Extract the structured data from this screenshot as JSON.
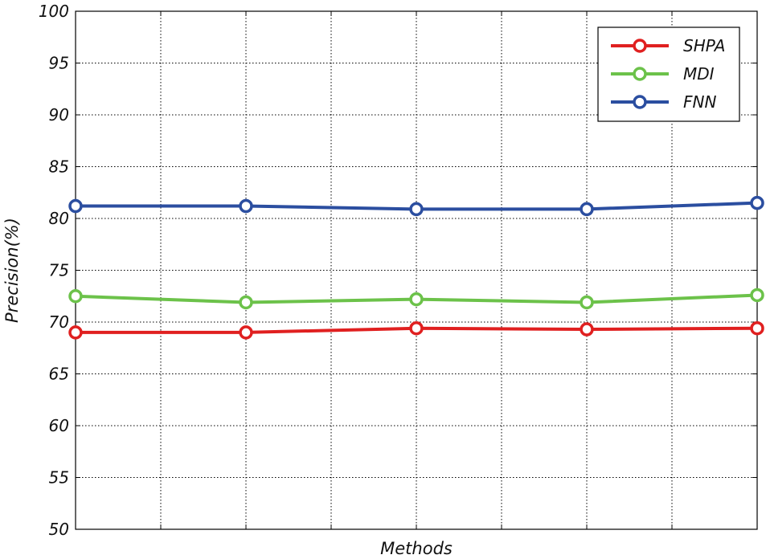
{
  "chart_data": {
    "type": "line",
    "title": "",
    "xlabel": "Methods",
    "ylabel": "Precision(%)",
    "ylim": [
      50,
      100
    ],
    "yticks": [
      "50",
      "55",
      "60",
      "65",
      "70",
      "75",
      "80",
      "85",
      "90",
      "95",
      "100"
    ],
    "xlim": [
      1,
      9
    ],
    "grid": true,
    "legend_position": "top-right",
    "x": [
      1,
      3,
      5,
      7,
      9
    ],
    "series": [
      {
        "name": "SHPA",
        "color": "#e02020",
        "values": [
          69.0,
          69.0,
          69.4,
          69.3,
          69.4
        ]
      },
      {
        "name": "MDI",
        "color": "#6cc24a",
        "values": [
          72.5,
          71.9,
          72.2,
          71.9,
          72.6
        ]
      },
      {
        "name": "FNN",
        "color": "#2b4ea0",
        "values": [
          81.2,
          81.2,
          80.9,
          80.9,
          81.5
        ]
      }
    ]
  }
}
